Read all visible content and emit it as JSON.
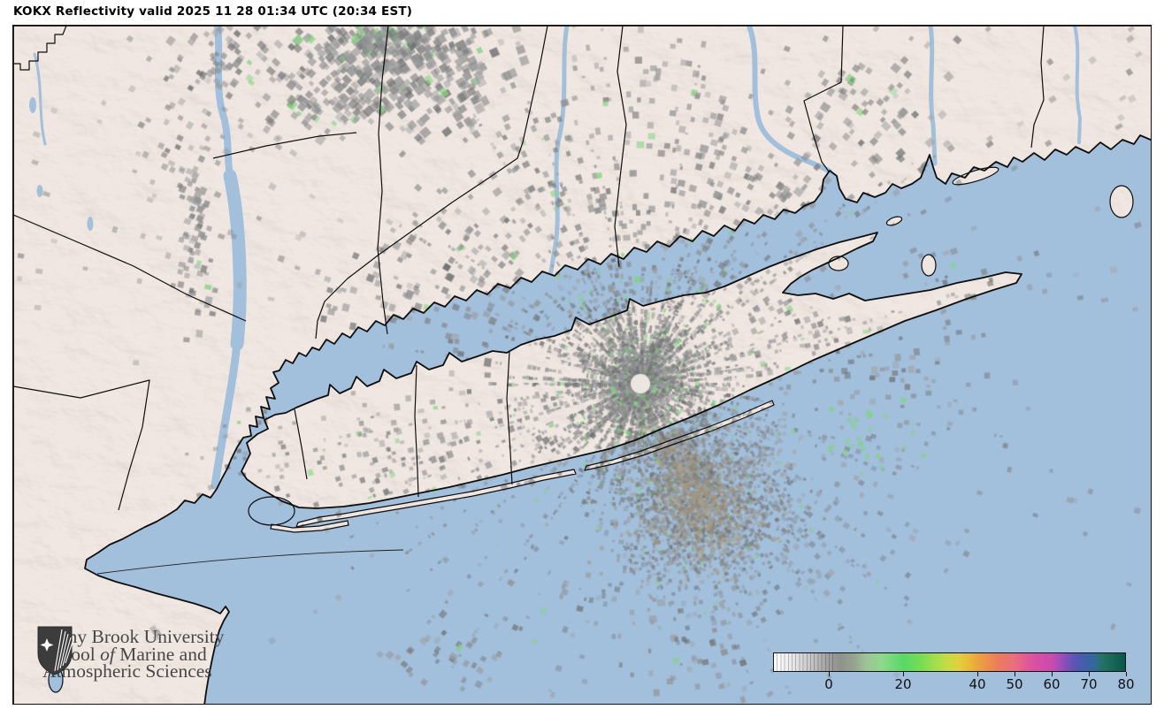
{
  "header": {
    "title": "KOKX Reflectivity valid 2025 11 28 01:34 UTC (20:34 EST)"
  },
  "map": {
    "colors": {
      "water": "#a2bfdc",
      "land": "#f1e7e2",
      "coastline": "#0e0e0e",
      "boundary": "#0e0e0e"
    }
  },
  "radar": {
    "echo_green": "#82d480",
    "echo_tan": "#a8966f",
    "cone_of_silence": "#ece6e1"
  },
  "colorbar": {
    "tick_labels": [
      "0",
      "20",
      "40",
      "50",
      "60",
      "70",
      "80"
    ],
    "tick_values": [
      0,
      20,
      40,
      50,
      60,
      70,
      80
    ],
    "scale_domain_dbz": [
      -15,
      80
    ],
    "stops": [
      [
        -15,
        "#ffffff"
      ],
      [
        -10,
        "#e9e9e9"
      ],
      [
        -5,
        "#c6c6c6"
      ],
      [
        0,
        "#9e9e9e"
      ],
      [
        3,
        "#8f928c"
      ],
      [
        7,
        "#95a78f"
      ],
      [
        10,
        "#9cc496"
      ],
      [
        14,
        "#8fd98c"
      ],
      [
        20,
        "#59d866"
      ],
      [
        24,
        "#71dc55"
      ],
      [
        28,
        "#9ade4d"
      ],
      [
        32,
        "#c6dc46"
      ],
      [
        35,
        "#e2cf3e"
      ],
      [
        38,
        "#e9b93a"
      ],
      [
        40,
        "#eba43c"
      ],
      [
        43,
        "#ec8f4e"
      ],
      [
        46,
        "#ec7a60"
      ],
      [
        50,
        "#e96f7d"
      ],
      [
        53,
        "#e25b94"
      ],
      [
        56,
        "#d94fa5"
      ],
      [
        60,
        "#cb4bae"
      ],
      [
        62,
        "#a94db8"
      ],
      [
        64,
        "#844fb9"
      ],
      [
        66,
        "#5f54b4"
      ],
      [
        68,
        "#4b5bae"
      ],
      [
        70,
        "#3b62a7"
      ],
      [
        72,
        "#2f6b95"
      ],
      [
        74,
        "#257162"
      ],
      [
        76,
        "#1a6a58"
      ],
      [
        78,
        "#12604f"
      ],
      [
        80,
        "#0b5547"
      ]
    ]
  },
  "logo": {
    "line1": "Stony Brook University",
    "line2_parts": [
      "School ",
      "of",
      " Marine and"
    ],
    "line3": "Atmospheric Sciences"
  }
}
